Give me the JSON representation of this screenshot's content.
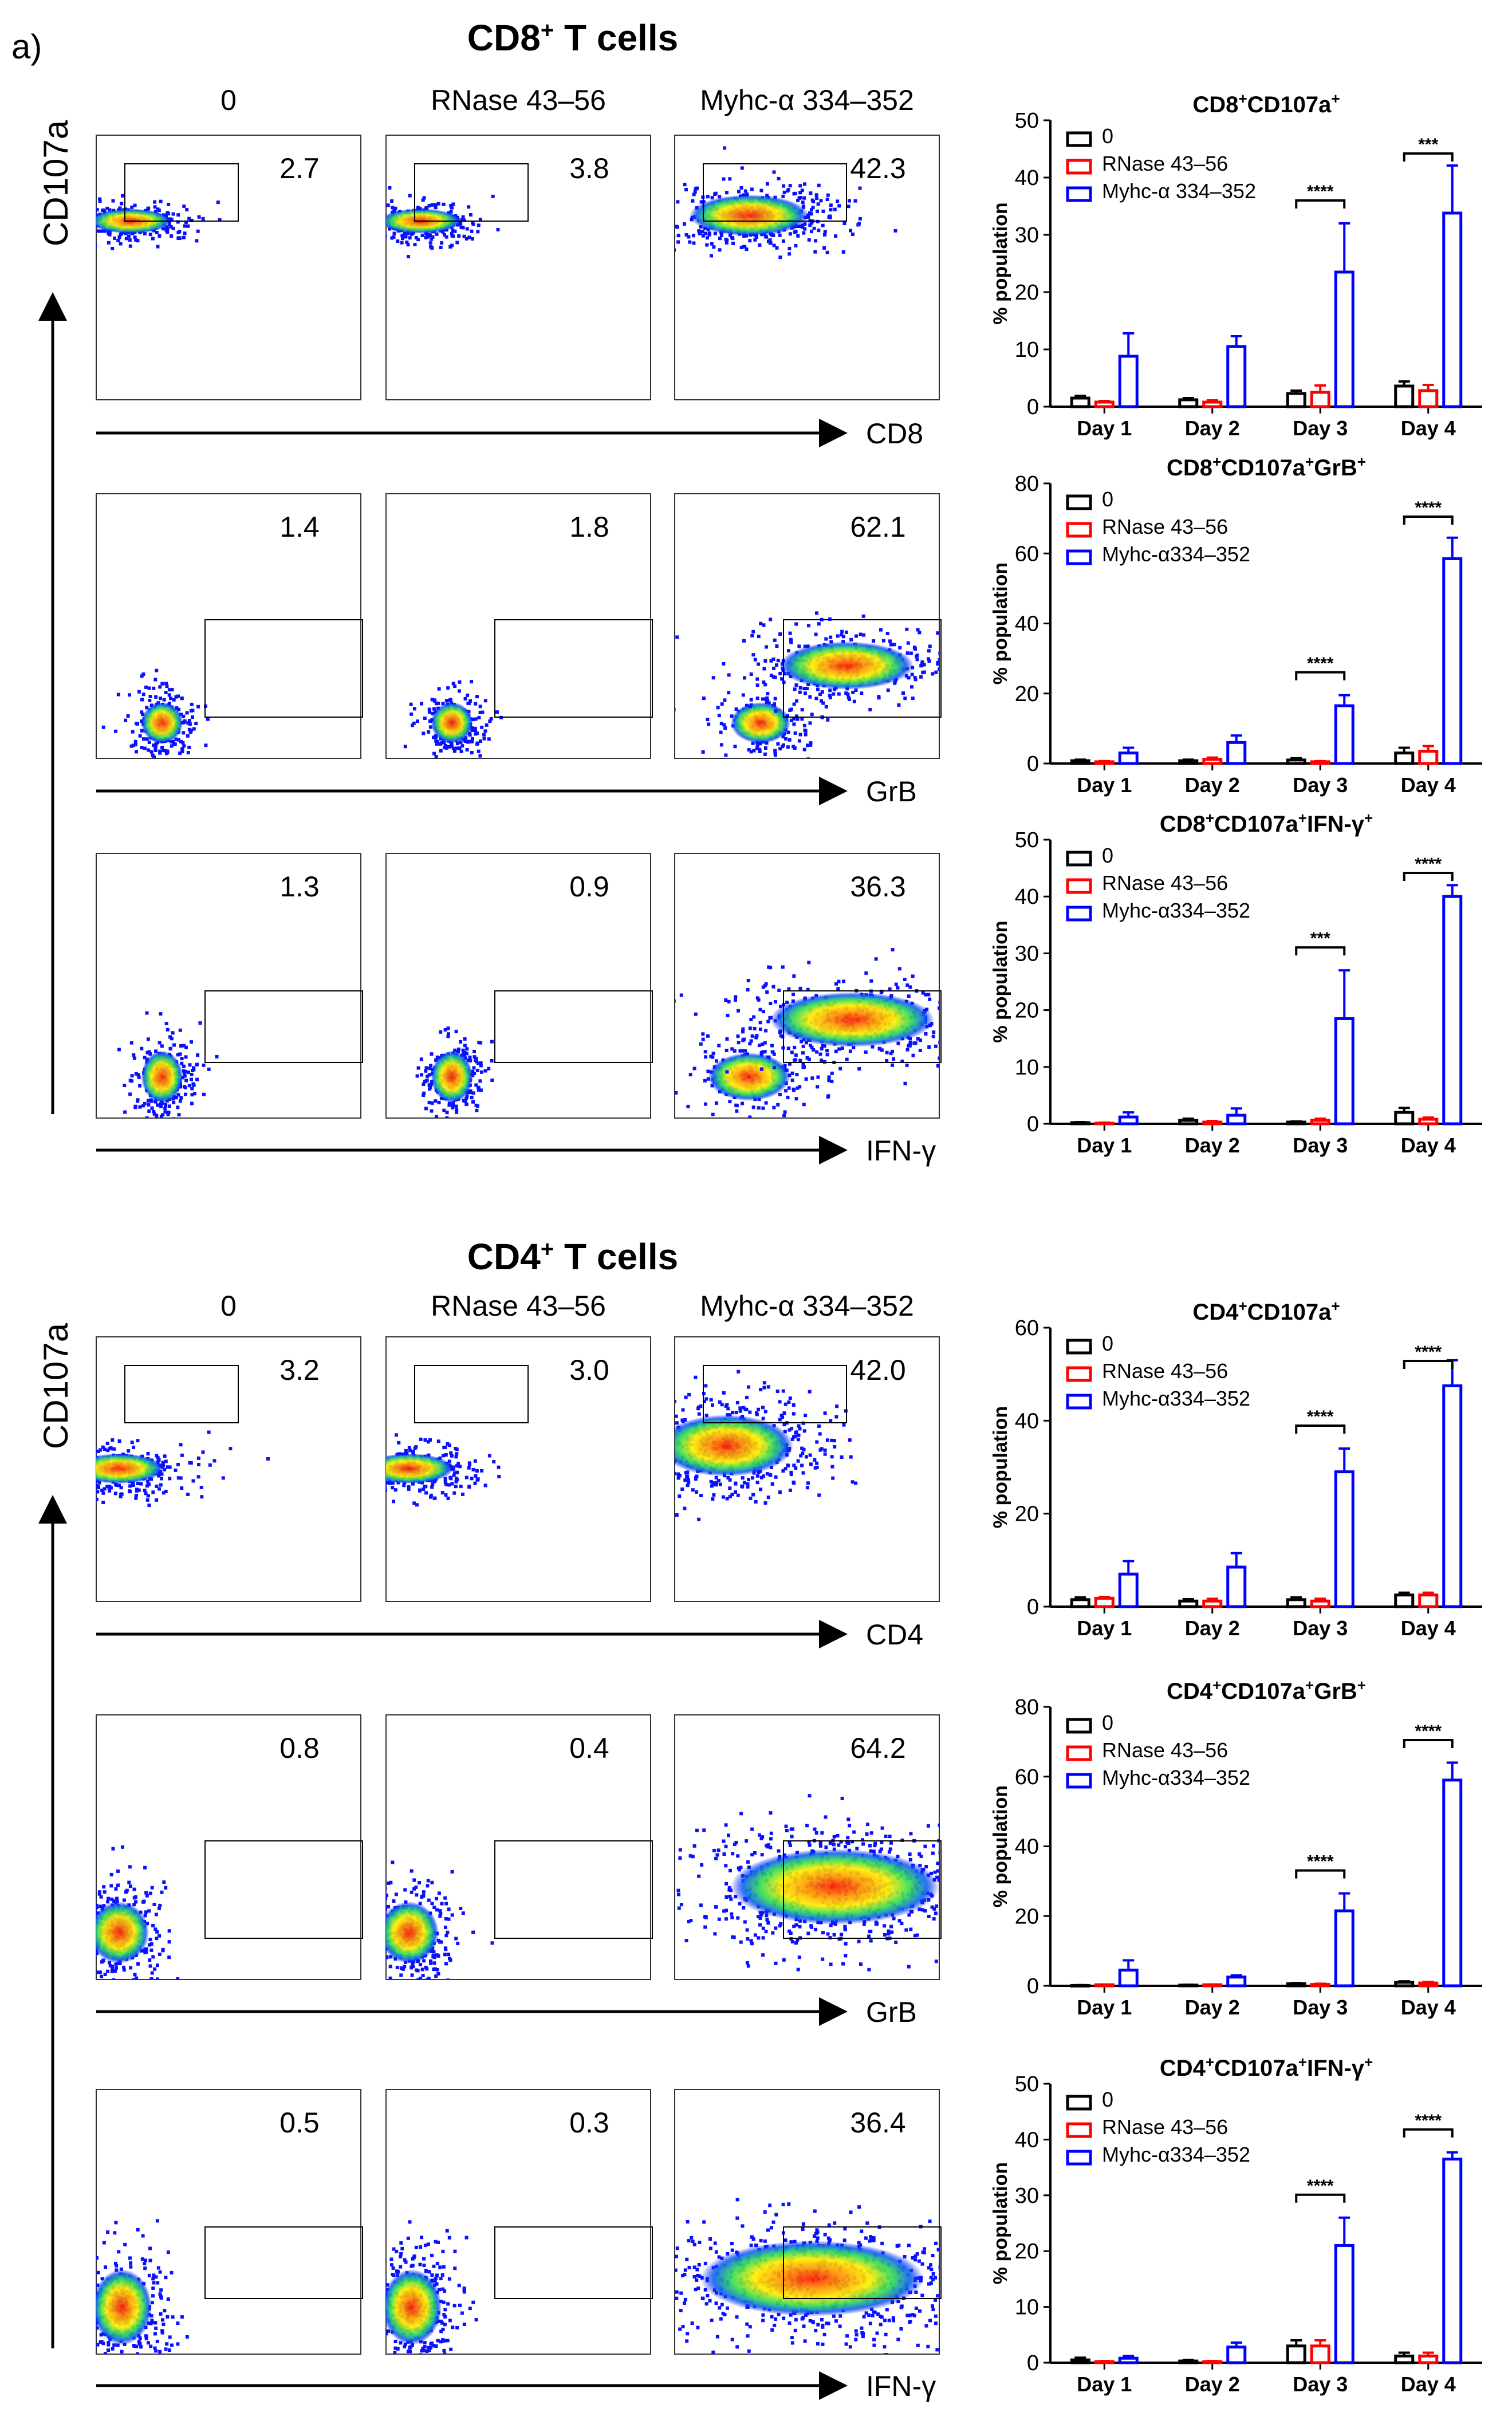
{
  "panel_label": "a)",
  "sections": [
    {
      "title": "CD8",
      "title_sup": "+",
      "title_rest": " T cells",
      "y_axis_label": "CD107a",
      "condition_labels": [
        "0",
        "RNase 43–56",
        "Myhc-α 334–352"
      ],
      "x_axis_labels": [
        "CD8",
        "GrB",
        "IFN-γ"
      ],
      "flow_rows": [
        {
          "percents": [
            "2.7",
            "3.8",
            "42.3"
          ]
        },
        {
          "percents": [
            "1.4",
            "1.8",
            "62.1"
          ]
        },
        {
          "percents": [
            "1.3",
            "0.9",
            "36.3"
          ]
        }
      ]
    },
    {
      "title": "CD4",
      "title_sup": "+",
      "title_rest": " T cells",
      "y_axis_label": "CD107a",
      "condition_labels": [
        "0",
        "RNase 43–56",
        "Myhc-α 334–352"
      ],
      "x_axis_labels": [
        "CD4",
        "GrB",
        "IFN-γ"
      ],
      "flow_rows": [
        {
          "percents": [
            "3.2",
            "3.0",
            "42.0"
          ]
        },
        {
          "percents": [
            "0.8",
            "0.4",
            "64.2"
          ]
        },
        {
          "percents": [
            "0.5",
            "0.3",
            "36.4"
          ]
        }
      ]
    }
  ],
  "colors": {
    "series_0": "#000000",
    "series_rnase": "#ff0000",
    "series_myhc": "#0000ff"
  },
  "chart_data": [
    {
      "type": "bar",
      "title_parts": [
        [
          "CD8",
          "n"
        ],
        [
          "+",
          "sup"
        ],
        [
          "CD107a",
          "n"
        ],
        [
          "+",
          "sup"
        ]
      ],
      "categories": [
        "Day 1",
        "Day 2",
        "Day 3",
        "Day 4"
      ],
      "ylabel": "% population",
      "ylim": [
        0,
        50
      ],
      "yticks": [
        0,
        10,
        20,
        30,
        40,
        50
      ],
      "legend": [
        "0",
        "RNase 43–56",
        "Myhc-α 334–352"
      ],
      "series": [
        {
          "name": "0",
          "values": [
            1.5,
            1.2,
            2.3,
            3.6
          ],
          "errors": [
            0.4,
            0.3,
            0.5,
            0.8
          ]
        },
        {
          "name": "RNase 43–56",
          "values": [
            0.8,
            0.8,
            2.5,
            2.8
          ],
          "errors": [
            0.2,
            0.3,
            1.2,
            1.0
          ]
        },
        {
          "name": "Myhc-α 334–352",
          "values": [
            8.8,
            10.5,
            23.5,
            33.8
          ],
          "errors": [
            4.0,
            1.8,
            8.5,
            8.3
          ]
        }
      ],
      "significance": [
        {
          "category": "Day 3",
          "label": "****"
        },
        {
          "category": "Day 4",
          "label": "***"
        }
      ]
    },
    {
      "type": "bar",
      "title_parts": [
        [
          "CD8",
          "n"
        ],
        [
          "+",
          "sup"
        ],
        [
          "CD107a",
          "n"
        ],
        [
          "+",
          "sup"
        ],
        [
          "GrB",
          "n"
        ],
        [
          "+",
          "sup"
        ]
      ],
      "categories": [
        "Day 1",
        "Day 2",
        "Day 3",
        "Day 4"
      ],
      "ylabel": "% population",
      "ylim": [
        0,
        80
      ],
      "yticks": [
        0,
        20,
        40,
        60,
        80
      ],
      "legend": [
        "0",
        "RNase 43–56",
        "Myhc-α334–352"
      ],
      "series": [
        {
          "name": "0",
          "values": [
            0.8,
            0.8,
            1.0,
            3.0
          ],
          "errors": [
            0.3,
            0.3,
            0.5,
            1.5
          ]
        },
        {
          "name": "RNase 43–56",
          "values": [
            0.5,
            1.2,
            0.5,
            3.5
          ],
          "errors": [
            0.2,
            0.5,
            0.2,
            1.5
          ]
        },
        {
          "name": "Myhc-α334–352",
          "values": [
            3.0,
            6.0,
            16.5,
            58.5
          ],
          "errors": [
            1.5,
            2.0,
            3.0,
            6.0
          ]
        }
      ],
      "significance": [
        {
          "category": "Day 3",
          "label": "****"
        },
        {
          "category": "Day 4",
          "label": "****"
        }
      ]
    },
    {
      "type": "bar",
      "title_parts": [
        [
          "CD8",
          "n"
        ],
        [
          "+",
          "sup"
        ],
        [
          "CD107a",
          "n"
        ],
        [
          "+",
          "sup"
        ],
        [
          "IFN-γ",
          "n"
        ],
        [
          "+",
          "sup"
        ]
      ],
      "categories": [
        "Day 1",
        "Day 2",
        "Day 3",
        "Day 4"
      ],
      "ylabel": "% population",
      "ylim": [
        0,
        50
      ],
      "yticks": [
        0,
        10,
        20,
        30,
        40,
        50
      ],
      "legend": [
        "0",
        "RNase 43–56",
        "Myhc-α334–352"
      ],
      "series": [
        {
          "name": "0",
          "values": [
            0.2,
            0.6,
            0.3,
            2.0
          ],
          "errors": [
            0.1,
            0.3,
            0.1,
            0.8
          ]
        },
        {
          "name": "RNase 43–56",
          "values": [
            0.1,
            0.3,
            0.6,
            0.8
          ],
          "errors": [
            0.1,
            0.2,
            0.3,
            0.3
          ]
        },
        {
          "name": "Myhc-α334–352",
          "values": [
            1.2,
            1.5,
            18.5,
            40.0
          ],
          "errors": [
            0.8,
            1.2,
            8.5,
            2.0
          ]
        }
      ],
      "significance": [
        {
          "category": "Day 3",
          "label": "***"
        },
        {
          "category": "Day 4",
          "label": "****"
        }
      ]
    },
    {
      "type": "bar",
      "title_parts": [
        [
          "CD4",
          "n"
        ],
        [
          "+",
          "sup"
        ],
        [
          "CD107a",
          "n"
        ],
        [
          "+",
          "sup"
        ]
      ],
      "categories": [
        "Day 1",
        "Day 2",
        "Day 3",
        "Day 4"
      ],
      "ylabel": "% population",
      "ylim": [
        0,
        60
      ],
      "yticks": [
        0,
        20,
        40,
        60
      ],
      "legend": [
        "0",
        "RNase 43–56",
        "Myhc-α334–352"
      ],
      "series": [
        {
          "name": "0",
          "values": [
            1.5,
            1.2,
            1.5,
            2.5
          ],
          "errors": [
            0.5,
            0.4,
            0.5,
            0.5
          ]
        },
        {
          "name": "RNase 43–56",
          "values": [
            1.8,
            1.2,
            1.2,
            2.5
          ],
          "errors": [
            0.3,
            0.5,
            0.5,
            0.5
          ]
        },
        {
          "name": "Myhc-α334–352",
          "values": [
            7.0,
            8.5,
            29.0,
            47.5
          ],
          "errors": [
            2.8,
            3.0,
            5.0,
            5.5
          ]
        }
      ],
      "significance": [
        {
          "category": "Day 3",
          "label": "****"
        },
        {
          "category": "Day 4",
          "label": "****"
        }
      ]
    },
    {
      "type": "bar",
      "title_parts": [
        [
          "CD4",
          "n"
        ],
        [
          "+",
          "sup"
        ],
        [
          "CD107a",
          "n"
        ],
        [
          "+",
          "sup"
        ],
        [
          "GrB",
          "n"
        ],
        [
          "+",
          "sup"
        ]
      ],
      "categories": [
        "Day 1",
        "Day 2",
        "Day 3",
        "Day 4"
      ],
      "ylabel": "% population",
      "ylim": [
        0,
        80
      ],
      "yticks": [
        0,
        20,
        40,
        60,
        80
      ],
      "legend": [
        "0",
        "RNase 43–56",
        "Myhc-α334–352"
      ],
      "series": [
        {
          "name": "0",
          "values": [
            0.1,
            0.2,
            0.6,
            1.0
          ],
          "errors": [
            0.1,
            0.1,
            0.2,
            0.3
          ]
        },
        {
          "name": "RNase 43–56",
          "values": [
            0.3,
            0.3,
            0.4,
            0.8
          ],
          "errors": [
            0.1,
            0.1,
            0.2,
            0.3
          ]
        },
        {
          "name": "Myhc-α334–352",
          "values": [
            4.5,
            2.5,
            21.5,
            59.0
          ],
          "errors": [
            2.8,
            0.5,
            5.0,
            5.0
          ]
        }
      ],
      "significance": [
        {
          "category": "Day 3",
          "label": "****"
        },
        {
          "category": "Day 4",
          "label": "****"
        }
      ]
    },
    {
      "type": "bar",
      "title_parts": [
        [
          "CD4",
          "n"
        ],
        [
          "+",
          "sup"
        ],
        [
          "CD107a",
          "n"
        ],
        [
          "+",
          "sup"
        ],
        [
          "IFN-γ",
          "n"
        ],
        [
          "+",
          "sup"
        ]
      ],
      "categories": [
        "Day 1",
        "Day 2",
        "Day 3",
        "Day 4"
      ],
      "ylabel": "% population",
      "ylim": [
        0,
        50
      ],
      "yticks": [
        0,
        10,
        20,
        30,
        40,
        50
      ],
      "legend": [
        "0",
        "RNase 43–56",
        "Myhc-α334–352"
      ],
      "series": [
        {
          "name": "0",
          "values": [
            0.5,
            0.3,
            3.0,
            1.2
          ],
          "errors": [
            0.4,
            0.2,
            1.0,
            0.6
          ]
        },
        {
          "name": "RNase 43–56",
          "values": [
            0.2,
            0.2,
            3.0,
            1.2
          ],
          "errors": [
            0.1,
            0.1,
            1.0,
            0.6
          ]
        },
        {
          "name": "Myhc-α334–352",
          "values": [
            0.8,
            2.8,
            21.0,
            36.5
          ],
          "errors": [
            0.4,
            0.8,
            5.0,
            1.2
          ]
        }
      ],
      "significance": [
        {
          "category": "Day 3",
          "label": "****"
        },
        {
          "category": "Day 4",
          "label": "****"
        }
      ]
    }
  ]
}
